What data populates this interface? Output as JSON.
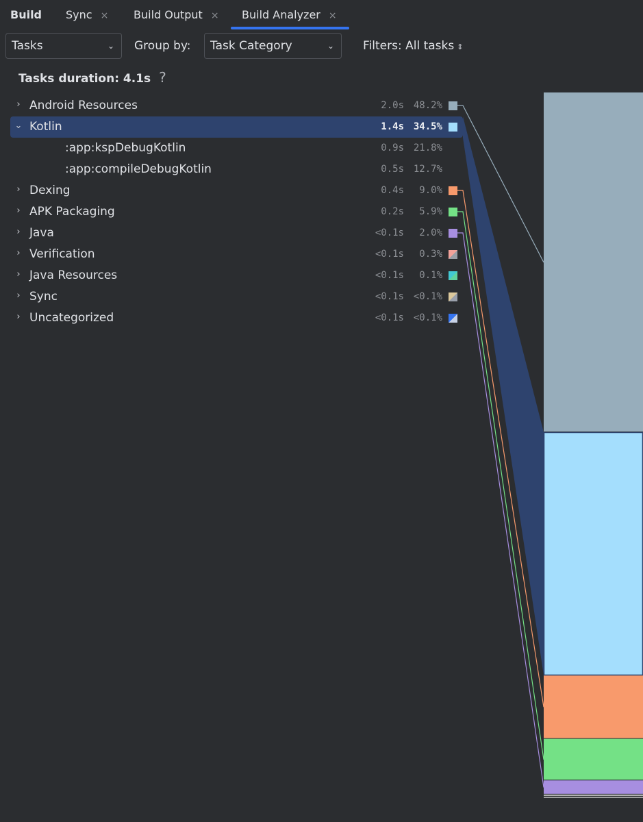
{
  "tabs": {
    "title": "Build",
    "items": [
      {
        "label": "Sync",
        "close": "×"
      },
      {
        "label": "Build Output",
        "close": "×"
      },
      {
        "label": "Build Analyzer",
        "close": "×"
      }
    ]
  },
  "toolbar": {
    "view_select": "Tasks",
    "group_by_label": "Group by:",
    "group_by_select": "Task Category",
    "filters_label": "Filters: All tasks"
  },
  "summary": {
    "label": "Tasks duration: 4.1s",
    "help": "?"
  },
  "rows": [
    {
      "name": "Android Resources",
      "duration": "2.0s",
      "percent": "48.2%",
      "expanded": false,
      "color": "#97adbb"
    },
    {
      "name": "Kotlin",
      "duration": "1.4s",
      "percent": "34.5%",
      "expanded": true,
      "selected": true,
      "color": "#a4defd"
    },
    {
      "name": ":app:kspDebugKotlin",
      "duration": "0.9s",
      "percent": "21.8%",
      "child": true
    },
    {
      "name": ":app:compileDebugKotlin",
      "duration": "0.5s",
      "percent": "12.7%",
      "child": true
    },
    {
      "name": "Dexing",
      "duration": "0.4s",
      "percent": "9.0%",
      "expanded": false,
      "color": "#f89a6c"
    },
    {
      "name": "APK Packaging",
      "duration": "0.2s",
      "percent": "5.9%",
      "expanded": false,
      "color": "#74e186"
    },
    {
      "name": "Java",
      "duration": "<0.1s",
      "percent": "2.0%",
      "expanded": false,
      "color": "#a78ee0"
    },
    {
      "name": "Verification",
      "duration": "<0.1s",
      "percent": "0.3%",
      "expanded": false,
      "color": "#f3a29a",
      "color2": "#9a9ea6"
    },
    {
      "name": "Java Resources",
      "duration": "<0.1s",
      "percent": "0.1%",
      "expanded": false,
      "color": "#42c9d4",
      "color2": "#5fd3a0"
    },
    {
      "name": "Sync",
      "duration": "<0.1s",
      "percent": "<0.1%",
      "expanded": false,
      "color": "#dcc99c",
      "color2": "#9aa0ab"
    },
    {
      "name": "Uncategorized",
      "duration": "<0.1s",
      "percent": "<0.1%",
      "expanded": false,
      "color": "#3574f0",
      "color2": "#c8d2e6"
    }
  ],
  "chart_data": {
    "type": "bar",
    "categories": [
      "Android Resources",
      "Kotlin",
      "Dexing",
      "APK Packaging",
      "Java",
      "Verification",
      "Java Resources",
      "Sync",
      "Uncategorized"
    ],
    "values": [
      48.2,
      34.5,
      9.0,
      5.9,
      2.0,
      0.3,
      0.1,
      0.05,
      0.05
    ],
    "colors": [
      "#97adbb",
      "#a4defd",
      "#f89a6c",
      "#74e186",
      "#a78ee0",
      "#b7b7b7",
      "#b7b7b7",
      "#b7b7b7",
      "#b7b7b7"
    ],
    "selected": "Kotlin",
    "stacked": true
  }
}
